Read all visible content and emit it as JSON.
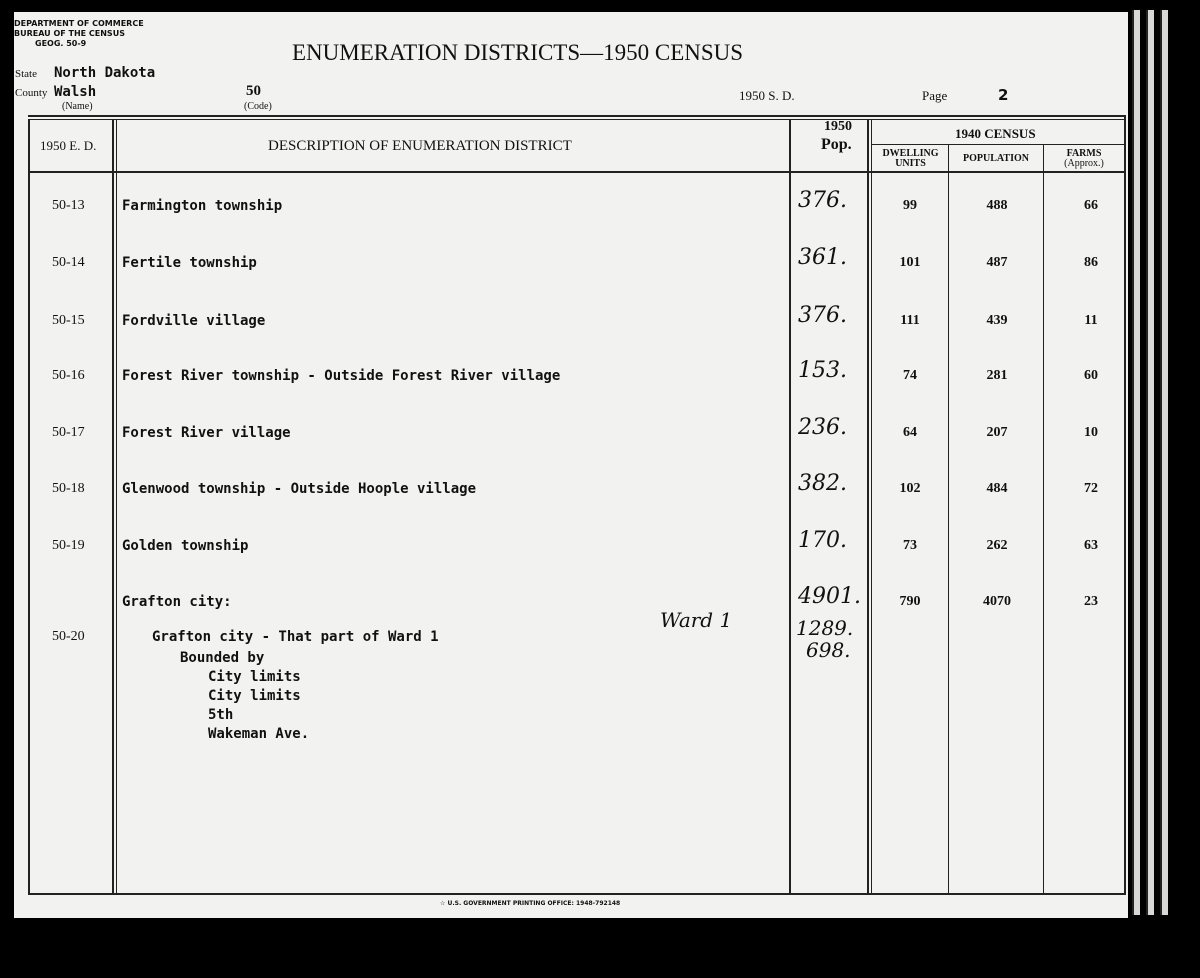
{
  "header": {
    "agency_lines": [
      "DEPARTMENT OF COMMERCE",
      "BUREAU OF THE CENSUS",
      "GEOG. 50-9"
    ],
    "title": "ENUMERATION DISTRICTS—1950 CENSUS",
    "state_label": "State",
    "state_value": "North Dakota",
    "county_label": "County",
    "county_name": "Walsh",
    "county_code": "50",
    "name_caption": "(Name)",
    "code_caption": "(Code)",
    "sd_label": "1950 S. D.",
    "page_label": "Page",
    "page_number": "2"
  },
  "columns": {
    "ed": "1950 E. D.",
    "description": "DESCRIPTION OF ENUMERATION DISTRICT",
    "pop1950_line1": "1950",
    "pop1950_line2": "Pop.",
    "census1940": "1940 CENSUS",
    "dwelling_line1": "DWELLING",
    "dwelling_line2": "UNITS",
    "population": "POPULATION",
    "farms_line1": "FARMS",
    "farms_line2": "(Approx.)"
  },
  "rows": [
    {
      "ed": "50-13",
      "description": "Farmington township",
      "pop1950": "376.",
      "dwelling": "99",
      "population": "488",
      "farms": "66"
    },
    {
      "ed": "50-14",
      "description": "Fertile township",
      "pop1950": "361.",
      "dwelling": "101",
      "population": "487",
      "farms": "86"
    },
    {
      "ed": "50-15",
      "description": "Fordville village",
      "pop1950": "376.",
      "dwelling": "111",
      "population": "439",
      "farms": "11"
    },
    {
      "ed": "50-16",
      "description": "Forest River township - Outside Forest River village",
      "pop1950": "153.",
      "dwelling": "74",
      "population": "281",
      "farms": "60"
    },
    {
      "ed": "50-17",
      "description": "Forest River village",
      "pop1950": "236.",
      "dwelling": "64",
      "population": "207",
      "farms": "10"
    },
    {
      "ed": "50-18",
      "description": "Glenwood township - Outside Hoople village",
      "pop1950": "382.",
      "dwelling": "102",
      "population": "484",
      "farms": "72"
    },
    {
      "ed": "50-19",
      "description": "Golden township",
      "pop1950": "170.",
      "dwelling": "73",
      "population": "262",
      "farms": "63"
    },
    {
      "ed": "",
      "description": "Grafton city:",
      "pop1950": "4901.",
      "dwelling": "790",
      "population": "4070",
      "farms": "23"
    }
  ],
  "ward_row": {
    "ed": "50-20",
    "description": "Grafton city - That part of Ward 1",
    "bounded_by": "Bounded by",
    "bounds": [
      "City limits",
      "City limits",
      "5th",
      "Wakeman Ave."
    ],
    "handwritten_note": "Ward 1",
    "pop1950_values": [
      "1289.",
      "698."
    ]
  },
  "footer": {
    "imprint": "☆ U.S. GOVERNMENT PRINTING OFFICE: 1948-792148"
  }
}
